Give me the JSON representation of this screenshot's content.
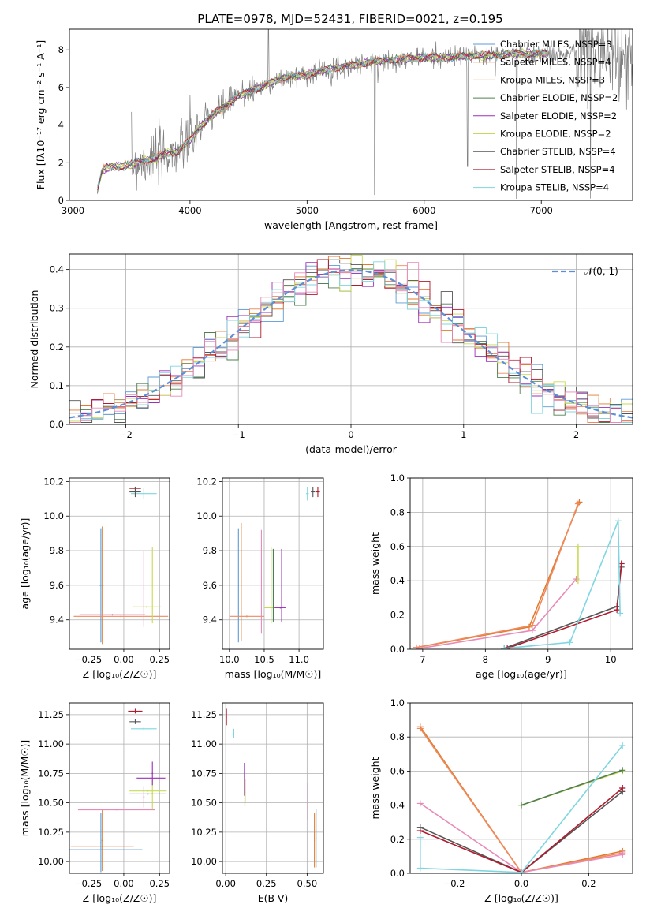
{
  "figure": {
    "title": "PLATE=0978, MJD=52431, FIBERID=0021, z=0.195"
  },
  "colors": {
    "chabrier_miles": "#5b9bd5",
    "salpeter_miles": "#f08a5d",
    "kroupa_miles": "#e07b2f",
    "chabrier_elodie": "#4f7f4f",
    "salpeter_elodie": "#9b30b8",
    "kroupa_elodie": "#c9d957",
    "chabrier_stelib": "#555555",
    "salpeter_stelib": "#b01c2e",
    "kroupa_stelib": "#7fd6e0",
    "data": "#808080",
    "normal": "#5b8fd9",
    "pink": "#e88ab8",
    "grid": "#b0b0b0"
  },
  "chart_data": [
    {
      "id": "spectrum",
      "type": "line",
      "xlabel": "wavelength [Angstrom, rest frame]",
      "ylabel": "Flux [fλ10⁻¹⁷ erg cm⁻² s⁻¹ A⁻¹]",
      "xlim": [
        2970,
        7780
      ],
      "ylim": [
        0,
        9.1
      ],
      "xticks": [
        "3000",
        "4000",
        "5000",
        "6000",
        "7000"
      ],
      "xtick_values": [
        3000,
        4000,
        5000,
        6000,
        7000
      ],
      "yticks": [
        "0",
        "2",
        "4",
        "6",
        "8"
      ],
      "ytick_values": [
        0,
        2,
        4,
        6,
        8
      ],
      "legend_position": "top-right",
      "legend": [
        {
          "label": "Chabrier MILES, NSSP=3",
          "color": "chabrier_miles"
        },
        {
          "label": "Salpeter MILES, NSSP=4",
          "color": "salpeter_miles"
        },
        {
          "label": "Kroupa MILES, NSSP=3",
          "color": "kroupa_miles"
        },
        {
          "label": "Chabrier ELODIE, NSSP=2",
          "color": "chabrier_elodie"
        },
        {
          "label": "Salpeter ELODIE, NSSP=2",
          "color": "salpeter_elodie"
        },
        {
          "label": "Kroupa ELODIE, NSSP=2",
          "color": "kroupa_elodie"
        },
        {
          "label": "Chabrier STELIB, NSSP=4",
          "color": "chabrier_stelib"
        },
        {
          "label": "Salpeter STELIB, NSSP=4",
          "color": "salpeter_stelib"
        },
        {
          "label": "Kroupa STELIB, NSSP=4",
          "color": "kroupa_stelib"
        }
      ],
      "model_continuum": [
        [
          3210,
          0.6
        ],
        [
          3250,
          1.6
        ],
        [
          3300,
          1.75
        ],
        [
          3400,
          1.8
        ],
        [
          3500,
          1.9
        ],
        [
          3600,
          2.1
        ],
        [
          3700,
          2.2
        ],
        [
          3800,
          2.5
        ],
        [
          3900,
          2.6
        ],
        [
          4000,
          3.2
        ],
        [
          4100,
          4.0
        ],
        [
          4200,
          4.6
        ],
        [
          4300,
          5.0
        ],
        [
          4400,
          5.5
        ],
        [
          4500,
          5.8
        ],
        [
          4600,
          6.0
        ],
        [
          4700,
          6.3
        ],
        [
          4800,
          6.5
        ],
        [
          4900,
          6.6
        ],
        [
          5000,
          6.7
        ],
        [
          5200,
          7.0
        ],
        [
          5400,
          7.2
        ],
        [
          5600,
          7.4
        ],
        [
          5800,
          7.5
        ],
        [
          6000,
          7.6
        ],
        [
          6200,
          7.6
        ],
        [
          6400,
          7.7
        ],
        [
          6600,
          7.7
        ],
        [
          6800,
          7.8
        ]
      ]
    },
    {
      "id": "residuals",
      "type": "histogram",
      "xlabel": "(data-model)/error",
      "ylabel": "Normed distribution",
      "xlim": [
        -2.5,
        2.5
      ],
      "ylim": [
        0,
        0.44
      ],
      "xticks": [
        "−2",
        "−1",
        "0",
        "1",
        "2"
      ],
      "xtick_values": [
        -2,
        -1,
        0,
        1,
        2
      ],
      "yticks": [
        "0.0",
        "0.1",
        "0.2",
        "0.3",
        "0.4"
      ],
      "ytick_values": [
        0,
        0.1,
        0.2,
        0.3,
        0.4
      ],
      "legend_position": "top-right",
      "legend": [
        {
          "label": "𝒩(0, 1)",
          "color": "normal"
        }
      ],
      "bin_width": 0.1
    },
    {
      "id": "age-vs-z",
      "type": "errorbar",
      "xlabel": "Z [log₁₀(Z/Z☉)]",
      "ylabel": "age  [log₁₀(age/yr)]",
      "xlim": [
        -0.38,
        0.32
      ],
      "ylim": [
        9.23,
        10.22
      ],
      "xticks": [
        "−0.25",
        "0.00",
        "0.25"
      ],
      "xtick_values": [
        -0.25,
        0,
        0.25
      ],
      "yticks": [
        "9.4",
        "9.6",
        "9.8",
        "10.0",
        "10.2"
      ],
      "ytick_values": [
        9.4,
        9.6,
        9.8,
        10.0,
        10.2
      ],
      "points": [
        {
          "x": -0.15,
          "y": 9.6,
          "xerr": 0.01,
          "yerr": 0.34,
          "color": "kroupa_miles"
        },
        {
          "x": -0.16,
          "y": 9.6,
          "xerr": 0.01,
          "yerr": 0.33,
          "color": "chabrier_miles"
        },
        {
          "x": -0.02,
          "y": 9.42,
          "xerr": 0.33,
          "yerr": 0.005,
          "color": "salpeter_miles"
        },
        {
          "x": -0.08,
          "y": 9.43,
          "xerr": 0.23,
          "yerr": 0.005,
          "color": "pink"
        },
        {
          "x": 0.14,
          "y": 9.58,
          "xerr": 0.005,
          "yerr": 0.22,
          "color": "pink"
        },
        {
          "x": 0.2,
          "y": 9.6,
          "xerr": 0.005,
          "yerr": 0.22,
          "color": "kroupa_elodie"
        },
        {
          "x": 0.16,
          "y": 9.475,
          "xerr": 0.1,
          "yerr": 0.005,
          "color": "kroupa_elodie"
        },
        {
          "x": 0.14,
          "y": 10.13,
          "xerr": 0.09,
          "yerr": 0.03,
          "color": "kroupa_stelib"
        },
        {
          "x": 0.08,
          "y": 10.16,
          "xerr": 0.04,
          "yerr": 0.01,
          "color": "salpeter_stelib"
        },
        {
          "x": 0.08,
          "y": 10.14,
          "xerr": 0.04,
          "yerr": 0.03,
          "color": "chabrier_stelib"
        }
      ]
    },
    {
      "id": "age-vs-mass",
      "type": "errorbar",
      "xlabel": "mass [log₁₀(M/M☉)]",
      "ylabel": "",
      "xlim": [
        9.9,
        11.35
      ],
      "ylim": [
        9.23,
        10.22
      ],
      "xticks": [
        "10.0",
        "10.5",
        "11.0"
      ],
      "xtick_values": [
        10.0,
        10.5,
        11.0
      ],
      "yticks": [
        "9.4",
        "9.6",
        "9.8",
        "10.0",
        "10.2"
      ],
      "ytick_values": [
        9.4,
        9.6,
        9.8,
        10.0,
        10.2
      ],
      "points": [
        {
          "x": 10.17,
          "y": 9.62,
          "xerr": 0.005,
          "yerr": 0.34,
          "color": "kroupa_miles"
        },
        {
          "x": 10.13,
          "y": 9.6,
          "xerr": 0.005,
          "yerr": 0.33,
          "color": "chabrier_miles"
        },
        {
          "x": 10.25,
          "y": 9.42,
          "xerr": 0.25,
          "yerr": 0.005,
          "color": "salpeter_miles"
        },
        {
          "x": 10.46,
          "y": 9.62,
          "xerr": 0.005,
          "yerr": 0.3,
          "color": "pink"
        },
        {
          "x": 10.6,
          "y": 9.47,
          "xerr": 0.1,
          "yerr": 0.005,
          "color": "kroupa_elodie"
        },
        {
          "x": 10.6,
          "y": 9.6,
          "xerr": 0.005,
          "yerr": 0.22,
          "color": "kroupa_elodie"
        },
        {
          "x": 10.63,
          "y": 9.6,
          "xerr": 0.005,
          "yerr": 0.21,
          "color": "chabrier_elodie"
        },
        {
          "x": 10.73,
          "y": 9.47,
          "xerr": 0.08,
          "yerr": 0.005,
          "color": "salpeter_elodie"
        },
        {
          "x": 10.75,
          "y": 9.6,
          "xerr": 0.005,
          "yerr": 0.21,
          "color": "salpeter_elodie"
        },
        {
          "x": 11.12,
          "y": 10.13,
          "xerr": 0.02,
          "yerr": 0.04,
          "color": "kroupa_stelib"
        },
        {
          "x": 11.2,
          "y": 10.14,
          "xerr": 0.03,
          "yerr": 0.03,
          "color": "chabrier_stelib"
        },
        {
          "x": 11.27,
          "y": 10.14,
          "xerr": 0.03,
          "yerr": 0.03,
          "color": "salpeter_stelib"
        }
      ]
    },
    {
      "id": "massweight-vs-age",
      "type": "line",
      "xlabel": "age  [log₁₀(age/yr)]",
      "ylabel": "mass weight",
      "xlim": [
        6.8,
        10.35
      ],
      "ylim": [
        0,
        1.0
      ],
      "xticks": [
        "7",
        "8",
        "9",
        "10"
      ],
      "xtick_values": [
        7,
        8,
        9,
        10
      ],
      "yticks": [
        "0.0",
        "0.2",
        "0.4",
        "0.6",
        "0.8",
        "1.0"
      ],
      "ytick_values": [
        0,
        0.2,
        0.4,
        0.6,
        0.8,
        1.0
      ],
      "series": [
        {
          "color": "kroupa_miles",
          "x": [
            6.9,
            8.7,
            9.5
          ],
          "y": [
            0.01,
            0.13,
            0.86
          ]
        },
        {
          "color": "salpeter_miles",
          "x": [
            6.9,
            8.75,
            9.48
          ],
          "y": [
            0.01,
            0.14,
            0.85
          ]
        },
        {
          "color": "pink",
          "x": [
            6.95,
            8.75,
            9.45
          ],
          "y": [
            0.005,
            0.11,
            0.41
          ]
        },
        {
          "color": "kroupa_elodie",
          "x": [
            9.48,
            9.48
          ],
          "y": [
            0.4,
            0.6
          ]
        },
        {
          "color": "chabrier_stelib",
          "x": [
            8.3,
            10.1,
            10.17
          ],
          "y": [
            0.005,
            0.25,
            0.48
          ]
        },
        {
          "color": "salpeter_stelib",
          "x": [
            8.35,
            10.1,
            10.17
          ],
          "y": [
            0.005,
            0.23,
            0.5
          ]
        },
        {
          "color": "kroupa_stelib",
          "x": [
            8.3,
            9.35,
            10.12,
            10.15
          ],
          "y": [
            0.005,
            0.04,
            0.75,
            0.21
          ]
        }
      ]
    },
    {
      "id": "mass-vs-z",
      "type": "errorbar",
      "xlabel": "Z [log₁₀(Z/Z☉)]",
      "ylabel": "mass [log₁₀(M/M☉)]",
      "xlim": [
        -0.38,
        0.32
      ],
      "ylim": [
        9.9,
        11.35
      ],
      "xticks": [
        "−0.25",
        "0.00",
        "0.25"
      ],
      "xtick_values": [
        -0.25,
        0,
        0.25
      ],
      "yticks": [
        "10.00",
        "10.25",
        "10.50",
        "10.75",
        "11.00",
        "11.25"
      ],
      "ytick_values": [
        10.0,
        10.25,
        10.5,
        10.75,
        11.0,
        11.25
      ],
      "points": [
        {
          "x": -0.15,
          "y": 10.1,
          "xerr": 0.28,
          "yerr": 0.005,
          "color": "chabrier_miles"
        },
        {
          "x": -0.15,
          "y": 10.13,
          "xerr": 0.22,
          "yerr": 0.005,
          "color": "kroupa_miles"
        },
        {
          "x": -0.15,
          "y": 10.18,
          "xerr": 0.005,
          "yerr": 0.26,
          "color": "kroupa_miles"
        },
        {
          "x": -0.16,
          "y": 10.16,
          "xerr": 0.005,
          "yerr": 0.25,
          "color": "chabrier_miles"
        },
        {
          "x": -0.05,
          "y": 10.44,
          "xerr": 0.27,
          "yerr": 0.005,
          "color": "pink"
        },
        {
          "x": 0.14,
          "y": 10.55,
          "xerr": 0.005,
          "yerr": 0.09,
          "color": "pink"
        },
        {
          "x": 0.17,
          "y": 10.6,
          "xerr": 0.13,
          "yerr": 0.005,
          "color": "kroupa_elodie"
        },
        {
          "x": 0.17,
          "y": 10.575,
          "xerr": 0.13,
          "yerr": 0.005,
          "color": "chabrier_elodie"
        },
        {
          "x": 0.2,
          "y": 10.58,
          "xerr": 0.005,
          "yerr": 0.13,
          "color": "kroupa_elodie"
        },
        {
          "x": 0.19,
          "y": 10.71,
          "xerr": 0.1,
          "yerr": 0.005,
          "color": "salpeter_elodie"
        },
        {
          "x": 0.2,
          "y": 10.75,
          "xerr": 0.005,
          "yerr": 0.1,
          "color": "salpeter_elodie"
        },
        {
          "x": 0.14,
          "y": 11.13,
          "xerr": 0.09,
          "yerr": 0.01,
          "color": "kroupa_stelib"
        },
        {
          "x": 0.08,
          "y": 11.28,
          "xerr": 0.05,
          "yerr": 0.02,
          "color": "salpeter_stelib"
        },
        {
          "x": 0.08,
          "y": 11.19,
          "xerr": 0.04,
          "yerr": 0.02,
          "color": "chabrier_stelib"
        }
      ]
    },
    {
      "id": "mass-vs-ebv",
      "type": "errorbar",
      "xlabel": "E(B-V)",
      "ylabel": "",
      "xlim": [
        -0.02,
        0.6
      ],
      "ylim": [
        9.9,
        11.35
      ],
      "xticks": [
        "0.00",
        "0.25",
        "0.50"
      ],
      "xtick_values": [
        0,
        0.25,
        0.5
      ],
      "yticks": [
        "10.00",
        "10.25",
        "10.50",
        "10.75",
        "11.00",
        "11.25"
      ],
      "ytick_values": [
        10.0,
        10.25,
        10.5,
        10.75,
        11.0,
        11.25
      ],
      "points": [
        {
          "x": 0.005,
          "y": 11.23,
          "xerr": 0.002,
          "yerr": 0.07,
          "color": "salpeter_stelib"
        },
        {
          "x": 0.05,
          "y": 11.09,
          "xerr": 0.002,
          "yerr": 0.04,
          "color": "kroupa_stelib"
        },
        {
          "x": 0.115,
          "y": 10.7,
          "xerr": 0.002,
          "yerr": 0.14,
          "color": "salpeter_elodie"
        },
        {
          "x": 0.118,
          "y": 10.58,
          "xerr": 0.002,
          "yerr": 0.11,
          "color": "chabrier_elodie"
        },
        {
          "x": 0.12,
          "y": 10.6,
          "xerr": 0.002,
          "yerr": 0.1,
          "color": "kroupa_elodie"
        },
        {
          "x": 0.505,
          "y": 10.51,
          "xerr": 0.002,
          "yerr": 0.16,
          "color": "pink"
        },
        {
          "x": 0.545,
          "y": 10.18,
          "xerr": 0.002,
          "yerr": 0.23,
          "color": "kroupa_miles"
        },
        {
          "x": 0.555,
          "y": 10.2,
          "xerr": 0.002,
          "yerr": 0.25,
          "color": "chabrier_miles"
        }
      ]
    },
    {
      "id": "massweight-vs-z",
      "type": "line",
      "xlabel": "Z [log₁₀(Z/Z☉)]",
      "ylabel": "mass weight",
      "xlim": [
        -0.33,
        0.33
      ],
      "ylim": [
        0,
        1.0
      ],
      "xticks": [
        "−0.2",
        "0.0",
        "0.2"
      ],
      "xtick_values": [
        -0.2,
        0,
        0.2
      ],
      "yticks": [
        "0.0",
        "0.2",
        "0.4",
        "0.6",
        "0.8",
        "1.0"
      ],
      "ytick_values": [
        0,
        0.2,
        0.4,
        0.6,
        0.8,
        1.0
      ],
      "series": [
        {
          "color": "kroupa_miles",
          "x": [
            -0.3,
            0,
            0.3,
            0.3
          ],
          "y": [
            0.86,
            0.005,
            0.13,
            0.13
          ]
        },
        {
          "color": "salpeter_miles",
          "x": [
            -0.3,
            0,
            0.3
          ],
          "y": [
            0.85,
            0.005,
            0.12
          ]
        },
        {
          "color": "pink",
          "x": [
            -0.3,
            0,
            0.3,
            0.3
          ],
          "y": [
            0.41,
            0.005,
            0.11,
            0.12
          ]
        },
        {
          "color": "kroupa_elodie",
          "x": [
            0,
            0.3
          ],
          "y": [
            0.4,
            0.6
          ]
        },
        {
          "color": "chabrier_elodie",
          "x": [
            0,
            0.3
          ],
          "y": [
            0.4,
            0.605
          ]
        },
        {
          "color": "chabrier_stelib",
          "x": [
            -0.3,
            0,
            0.3,
            0.3
          ],
          "y": [
            0.27,
            0.005,
            0.48,
            0.48
          ]
        },
        {
          "color": "salpeter_stelib",
          "x": [
            -0.3,
            0,
            0.3,
            0.3
          ],
          "y": [
            0.25,
            0.005,
            0.5,
            0.5
          ]
        },
        {
          "color": "kroupa_stelib",
          "x": [
            -0.3,
            -0.3,
            0,
            0.3
          ],
          "y": [
            0.21,
            0.03,
            0.005,
            0.75
          ]
        }
      ]
    }
  ]
}
